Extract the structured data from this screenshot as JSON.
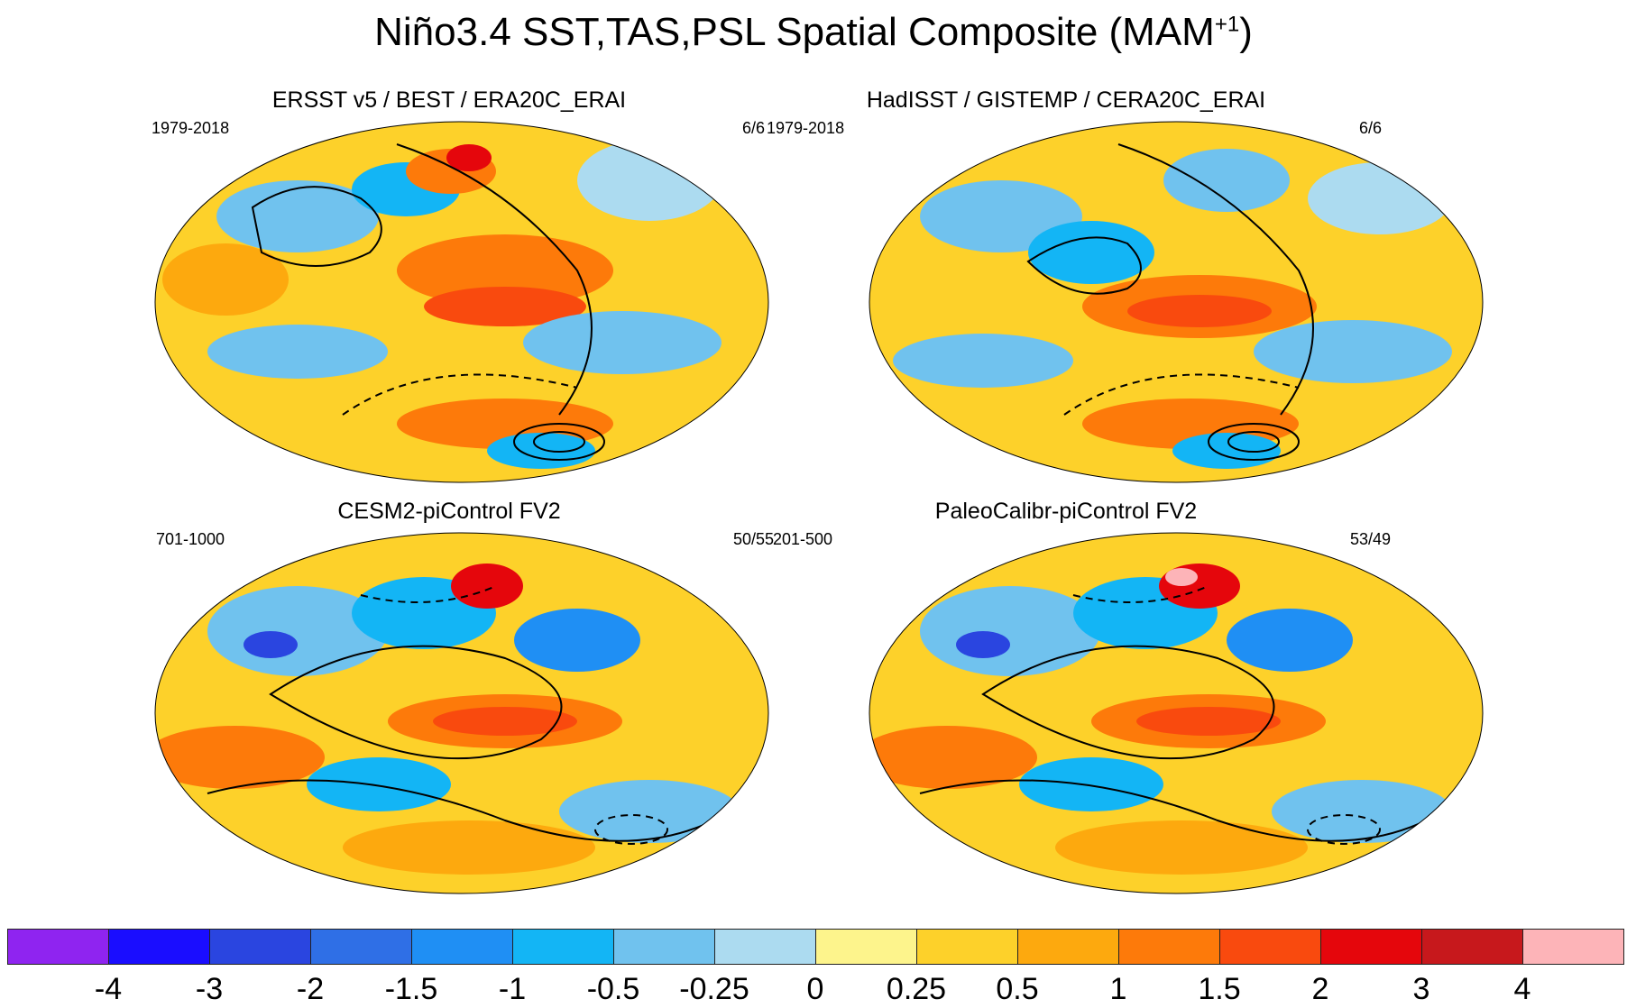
{
  "title": {
    "main": "Niño3.4 SST,TAS,PSL Spatial Composite (MAM",
    "superscript": "+1",
    "close": ")"
  },
  "panels": [
    {
      "title": "ERSST v5 / BEST / ERA20C_ERAI",
      "years": "1979-2018",
      "count": "6/6"
    },
    {
      "title": "HadISST / GISTEMP / CERA20C_ERAI",
      "years": "1979-2018",
      "count": "6/6"
    },
    {
      "title": "CESM2-piControl FV2",
      "years": "701-1000",
      "count": "50/55"
    },
    {
      "title": "PaleoCalibr-piControl FV2",
      "years": "201-500",
      "count": "53/49"
    }
  ],
  "colorbar": {
    "colors": [
      "#8f24f0",
      "#1a0dff",
      "#2a45e0",
      "#2f6fe6",
      "#1f8ff4",
      "#13b5f5",
      "#70c2ee",
      "#acdbf0",
      "#fdf48c",
      "#fdd12a",
      "#fda90e",
      "#fd7a0a",
      "#f94a0e",
      "#e5060c",
      "#c7181c",
      "#fdb4b8"
    ],
    "labels": [
      "-4",
      "-3",
      "-2",
      "-1.5",
      "-1",
      "-0.5",
      "-0.25",
      "0",
      "0.25",
      "0.5",
      "1",
      "1.5",
      "2",
      "3",
      "4"
    ]
  }
}
